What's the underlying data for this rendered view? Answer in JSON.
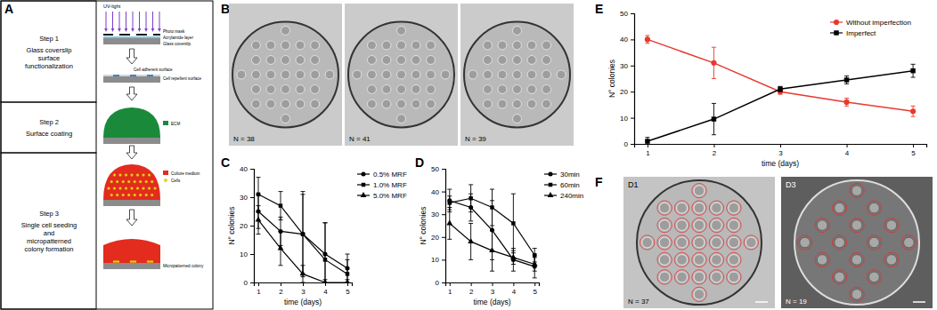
{
  "figure": {
    "panel_labels": [
      "A",
      "B",
      "C",
      "D",
      "E",
      "F"
    ],
    "steps": [
      {
        "title": "Step 1",
        "lines": [
          "Glass coverslip",
          "surface",
          "functionalization"
        ]
      },
      {
        "title": "Step 2",
        "lines": [
          "Surface coating"
        ]
      },
      {
        "title": "Step 3",
        "lines": [
          "Single cell seeding",
          "and",
          "micropatterned",
          "colony formation"
        ]
      }
    ],
    "diagram_labels": {
      "uv": "UV-light",
      "photo_mask": "Photo mask",
      "acrylamide": "Acrylamide layer",
      "glass": "Glass coverslip",
      "adherent": "Cell adherent surface",
      "repellent": "Cell repellent surface",
      "ecm": "ECM",
      "medium": "Culture medium",
      "cells": "Cells",
      "colony": "Micropatterned colony"
    },
    "panel_b": [
      "N = 38",
      "N = 41",
      "N = 39"
    ],
    "panel_f": [
      {
        "day": "D1",
        "count": "N = 37"
      },
      {
        "day": "D3",
        "count": "N = 19"
      }
    ]
  },
  "chart_data": [
    {
      "type": "line",
      "x_label": "time (days)",
      "y_label": "N° colonies",
      "x": [
        1,
        2,
        3,
        4,
        5
      ],
      "xlim": [
        0.8,
        5.2
      ],
      "xticks": [
        1,
        2,
        3,
        4,
        5
      ],
      "ylim": [
        0,
        40
      ],
      "yticks": [
        0,
        10,
        20,
        30,
        40
      ],
      "grid": false,
      "legend": "right",
      "series": [
        {
          "name": "0.5% MRF",
          "color": "#000000",
          "marker": "circle",
          "values": [
            25,
            18,
            17,
            10,
            5
          ],
          "errors": [
            6,
            5,
            15,
            11,
            5
          ]
        },
        {
          "name": "1.0% MRF",
          "color": "#000000",
          "marker": "square",
          "values": [
            31,
            27,
            17,
            8,
            3
          ],
          "errors": [
            6,
            5,
            14,
            13,
            5
          ]
        },
        {
          "name": "5.0% MRF",
          "color": "#000000",
          "marker": "triangle",
          "values": [
            22,
            12,
            3,
            0,
            0
          ],
          "errors": [
            5,
            6,
            3,
            1,
            1
          ]
        }
      ]
    },
    {
      "type": "line",
      "x_label": "time (days)",
      "y_label": "N° colonies",
      "x": [
        1,
        2,
        3,
        4,
        5
      ],
      "xlim": [
        0.8,
        5.2
      ],
      "xticks": [
        1,
        2,
        3,
        4,
        5
      ],
      "ylim": [
        0,
        50
      ],
      "yticks": [
        0,
        10,
        20,
        30,
        40,
        50
      ],
      "grid": false,
      "legend": "right",
      "series": [
        {
          "name": "30min",
          "color": "#000000",
          "marker": "circle",
          "values": [
            36,
            33,
            23,
            10,
            7
          ],
          "errors": [
            5,
            6,
            13,
            5,
            5
          ]
        },
        {
          "name": "60min",
          "color": "#000000",
          "marker": "square",
          "values": [
            35,
            37,
            33,
            26,
            12
          ],
          "errors": [
            3,
            6,
            8,
            13,
            3
          ]
        },
        {
          "name": "240min",
          "color": "#000000",
          "marker": "triangle",
          "values": [
            26,
            18,
            14,
            11,
            8
          ],
          "errors": [
            7,
            8,
            9,
            3,
            3
          ]
        }
      ]
    },
    {
      "type": "line",
      "x_label": "time (days)",
      "y_label": "N° colonies",
      "x": [
        1,
        2,
        3,
        4,
        5
      ],
      "xlim": [
        0.8,
        5.2
      ],
      "xticks": [
        1,
        2,
        3,
        4,
        5
      ],
      "ylim": [
        0,
        50
      ],
      "yticks": [
        0,
        10,
        20,
        30,
        40,
        50
      ],
      "grid": false,
      "legend": "upper right",
      "series": [
        {
          "name": "Without imperfection",
          "color": "#e8392e",
          "marker": "circle",
          "values": [
            40,
            31,
            20,
            16,
            12.5
          ],
          "errors": [
            1.5,
            6,
            1,
            1.5,
            2
          ]
        },
        {
          "name": "Imperfect",
          "color": "#000000",
          "marker": "square",
          "values": [
            1,
            9.5,
            21,
            24.5,
            28
          ],
          "errors": [
            1.5,
            6,
            1,
            1.5,
            2.5
          ]
        }
      ]
    }
  ]
}
